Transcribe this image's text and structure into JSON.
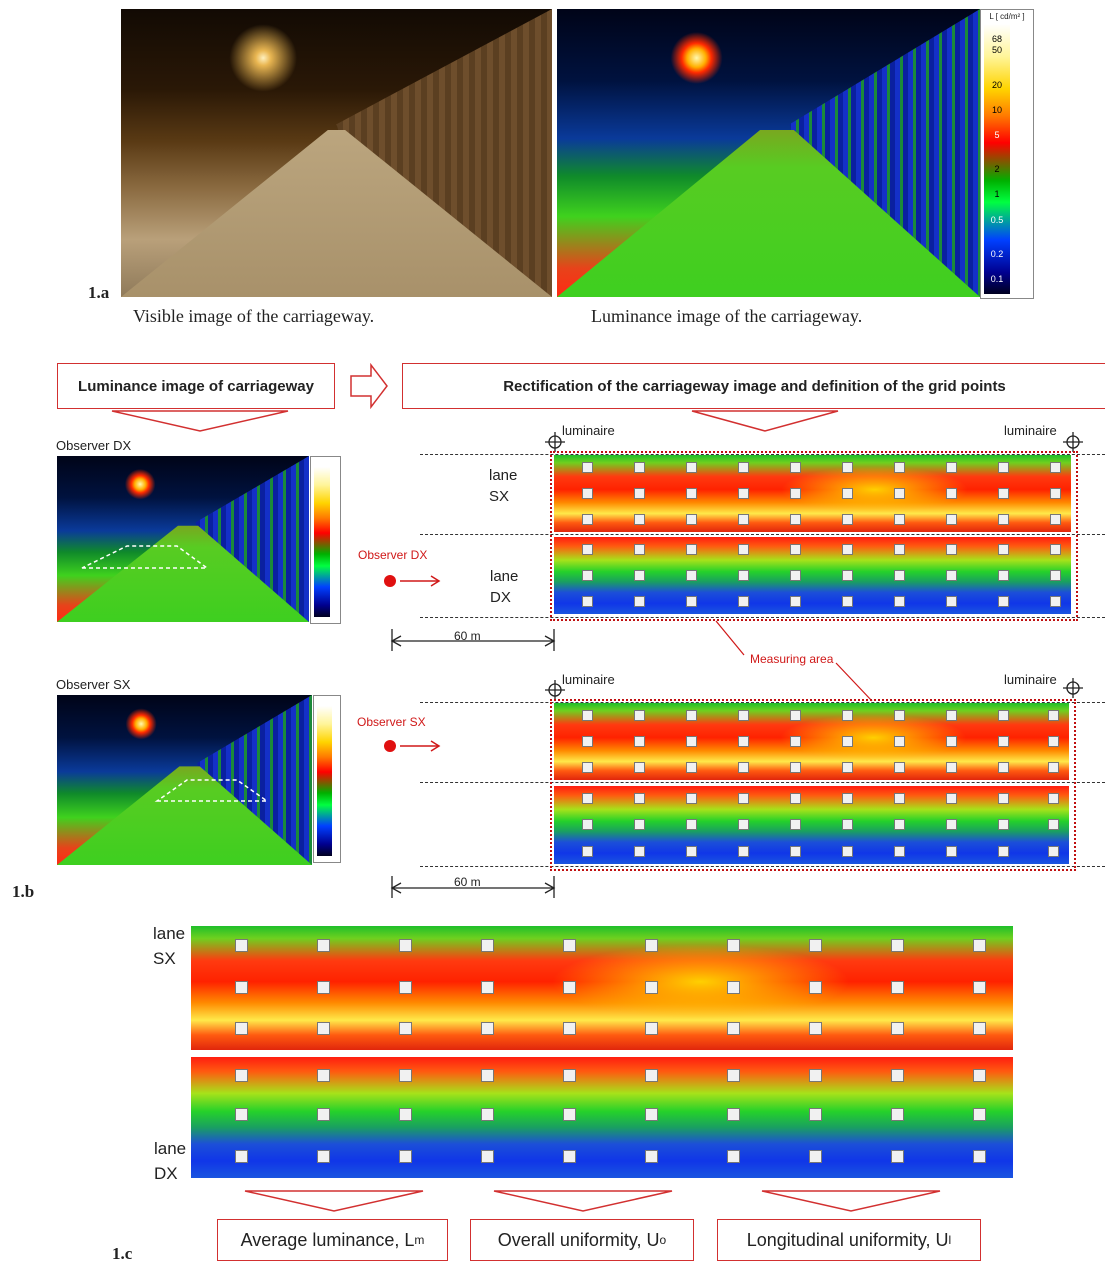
{
  "panel_a": {
    "label": "1.a",
    "caption_visible": "Visible image of the carriageway.",
    "caption_luminance": "Luminance image of the carriageway.",
    "scale_title": "L [ cd/m² ]",
    "scale_ticks": [
      "68",
      "50",
      "20",
      "10",
      "5",
      "2",
      "1",
      "0.5",
      "0.2",
      "0.1"
    ]
  },
  "panel_b": {
    "label": "1.b",
    "box_left": "Luminance image of carriageway",
    "box_right": "Rectification of the carriageway image and definition of the grid points",
    "observer_dx_title": "Observer DX",
    "observer_sx_title": "Observer SX",
    "luminaire": "luminaire",
    "lane_sx": [
      "lane",
      "SX"
    ],
    "lane_dx": [
      "lane",
      "DX"
    ],
    "observer_dx_arrow": "Observer DX",
    "observer_sx_arrow": "Observer SX",
    "distance": "60 m",
    "measuring_area": "Measuring area"
  },
  "panel_c": {
    "label": "1.c",
    "lane_sx": [
      "lane",
      "SX"
    ],
    "lane_dx": [
      "lane",
      "DX"
    ],
    "outputs": [
      {
        "text": "Average luminance, L",
        "sub": "m"
      },
      {
        "text": "Overall uniformity, U",
        "sub": "o"
      },
      {
        "text": "Longitudinal uniformity, U",
        "sub": "l"
      }
    ]
  },
  "colors": {
    "accent_red": "#d23030",
    "dash": "#333333"
  }
}
